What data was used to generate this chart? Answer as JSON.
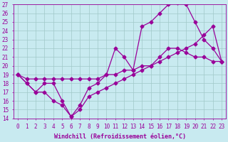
{
  "title": "",
  "xlabel": "Windchill (Refroidissement éolien,°C)",
  "bg_color": "#c8eaf0",
  "line_color": "#990099",
  "grid_color": "#a0c8c8",
  "xlim": [
    -0.5,
    23.5
  ],
  "ylim": [
    14,
    27
  ],
  "yticks": [
    14,
    15,
    16,
    17,
    18,
    19,
    20,
    21,
    22,
    23,
    24,
    25,
    26,
    27
  ],
  "xticks": [
    0,
    1,
    2,
    3,
    4,
    5,
    6,
    7,
    8,
    9,
    10,
    11,
    12,
    13,
    14,
    15,
    16,
    17,
    18,
    19,
    20,
    21,
    22,
    23
  ],
  "line1_x": [
    0,
    1,
    2,
    3,
    4,
    5,
    6,
    7,
    8,
    9,
    10,
    11,
    12,
    13,
    14,
    15,
    16,
    17,
    18,
    19,
    20,
    21,
    22,
    23
  ],
  "line1_y": [
    19,
    18,
    17,
    17,
    16,
    15.5,
    14.2,
    15,
    16.5,
    17,
    17.5,
    18,
    18.5,
    19,
    19.5,
    20,
    21,
    22,
    22,
    21.5,
    21,
    21,
    20.5,
    20.5
  ],
  "line2_x": [
    0,
    1,
    2,
    3,
    4,
    5,
    6,
    7,
    8,
    9,
    10,
    11,
    12,
    13,
    14,
    15,
    16,
    17,
    18,
    19,
    20,
    21,
    22,
    23
  ],
  "line2_y": [
    19,
    18,
    17,
    18,
    18,
    16,
    14.2,
    15.5,
    17.5,
    18,
    19,
    22,
    21,
    19.5,
    24.5,
    25,
    26,
    27,
    27.2,
    27,
    25,
    23,
    22,
    20.5
  ],
  "line3_x": [
    0,
    1,
    2,
    3,
    4,
    5,
    6,
    7,
    8,
    9,
    10,
    11,
    12,
    13,
    14,
    15,
    16,
    17,
    18,
    19,
    20,
    21,
    22,
    23
  ],
  "line3_y": [
    19,
    18.5,
    18.5,
    18.5,
    18.5,
    18.5,
    18.5,
    18.5,
    18.5,
    18.5,
    19,
    19,
    19.5,
    19.5,
    20,
    20,
    20.5,
    21,
    21.5,
    22,
    22.5,
    23.5,
    24.5,
    20.5
  ],
  "marker": "D",
  "marker_size": 2.5,
  "linewidth": 0.9,
  "xlabel_fontsize": 6,
  "tick_fontsize": 5.5,
  "xlabel_color": "#990099",
  "tick_color": "#990099",
  "axis_color": "#990099"
}
